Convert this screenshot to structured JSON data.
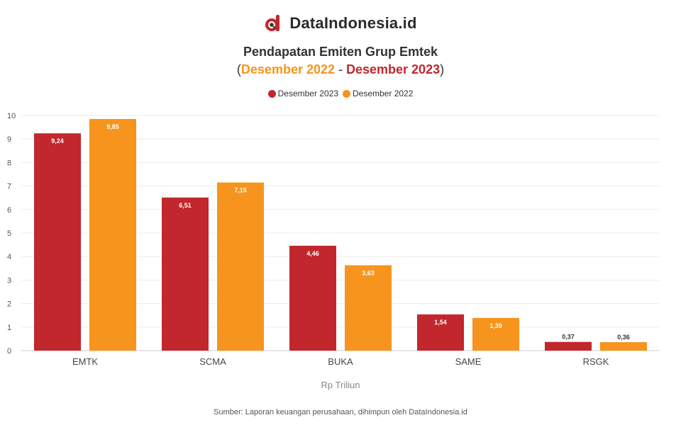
{
  "brand": {
    "name": "DataIndonesia.id",
    "logo_icon": "data-indonesia-logo-icon"
  },
  "header": {
    "title": "Pendapatan Emiten Grup Emtek",
    "subtitle_open": "(",
    "subtitle_from": "Desember 2022",
    "subtitle_sep": " - ",
    "subtitle_to": "Desember 2023",
    "subtitle_close": ")"
  },
  "legend": [
    {
      "label": "Desember 2023",
      "color": "#c1272d"
    },
    {
      "label": "Desember 2022",
      "color": "#f7941d"
    }
  ],
  "source": "Sumber: Laporan keuangan perusahaan, dihimpun oleh DataIndonesia.id",
  "chart_data": {
    "type": "bar",
    "categories": [
      "EMTK",
      "SCMA",
      "BUKA",
      "SAME",
      "RSGK"
    ],
    "series": [
      {
        "name": "Desember 2023",
        "color": "#c1272d",
        "values": [
          9.24,
          6.51,
          4.46,
          1.54,
          0.37
        ],
        "labels": [
          "9,24",
          "6,51",
          "4,46",
          "1,54",
          "0,37"
        ]
      },
      {
        "name": "Desember 2022",
        "color": "#f7941d",
        "values": [
          9.85,
          7.15,
          3.63,
          1.39,
          0.36
        ],
        "labels": [
          "9,85",
          "7,15",
          "3,63",
          "1,39",
          "0,36"
        ]
      }
    ],
    "xlabel": "Rp Triliun",
    "ylabel": "",
    "ylim": [
      0,
      10
    ],
    "yticks": [
      "0",
      "1",
      "2",
      "3",
      "4",
      "5",
      "6",
      "7",
      "8",
      "9",
      "10"
    ],
    "grid": true,
    "legend_position": "top-center"
  }
}
